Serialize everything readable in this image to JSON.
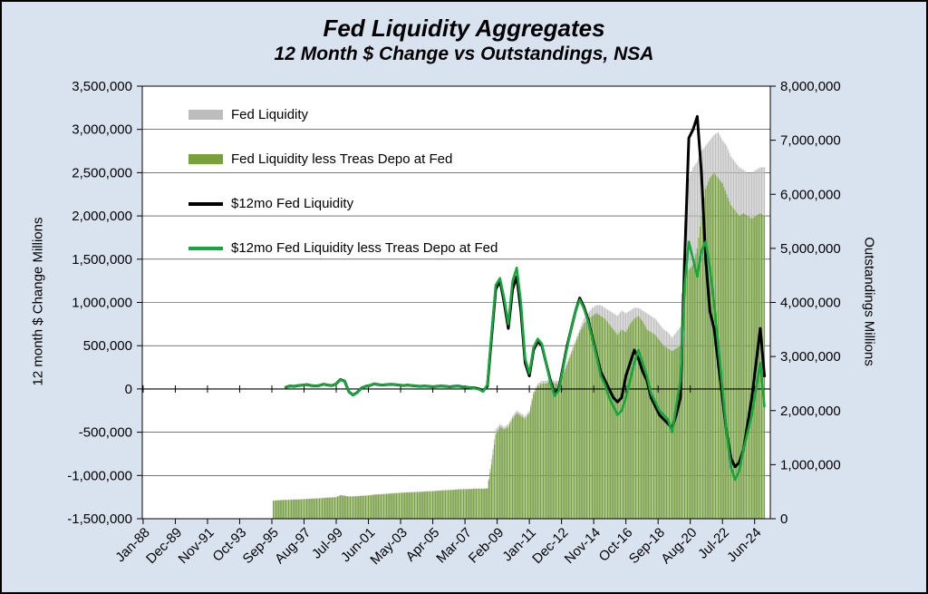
{
  "chart_data": {
    "type": "bar+line combo (bars on right axis, lines on left axis)",
    "title": "Fed Liquidity Aggregates",
    "subtitle": "12 Month $ Change vs Outstandings, NSA",
    "ylabel_left": "12 month $ Change Millions",
    "ylabel_right": "Outstandings Millions",
    "left_axis": {
      "min": -1500000,
      "max": 3500000,
      "step": 500000
    },
    "right_axis": {
      "min": 0,
      "max": 8000000,
      "step": 1000000
    },
    "x_axis": {
      "tick_labels": [
        "Jan-88",
        "Dec-89",
        "Nov-91",
        "Oct-93",
        "Sep-95",
        "Aug-97",
        "Jul-99",
        "Jun-01",
        "May-03",
        "Apr-05",
        "Mar-07",
        "Feb-09",
        "Jan-11",
        "Dec-12",
        "Nov-14",
        "Oct-16",
        "Sep-18",
        "Aug-20",
        "Jul-22",
        "Jun-24"
      ],
      "tick_start_year": 1988.0,
      "tick_step_months": 23
    },
    "colors": {
      "background": "#d9e3f0",
      "plot_background": "#ffffff",
      "grid": "#000000"
    },
    "series": [
      {
        "name": "Fed Liquidity",
        "type": "bar",
        "axis": "right",
        "color": "#bdbdbd",
        "x_start": 1995.75,
        "x_step": 0.25,
        "values": [
          340000,
          345000,
          350000,
          352000,
          355000,
          360000,
          362000,
          365000,
          370000,
          375000,
          378000,
          382000,
          390000,
          395000,
          398000,
          405000,
          440000,
          430000,
          415000,
          418000,
          422000,
          428000,
          432000,
          438000,
          450000,
          455000,
          460000,
          465000,
          472000,
          478000,
          482000,
          488000,
          492000,
          495000,
          498000,
          502000,
          508000,
          512000,
          515000,
          520000,
          528000,
          532000,
          535000,
          540000,
          548000,
          550000,
          552000,
          555000,
          560000,
          562000,
          560000,
          565000,
          1100000,
          1650000,
          1750000,
          1700000,
          1750000,
          1900000,
          2000000,
          1950000,
          1900000,
          2000000,
          2350000,
          2500000,
          2550000,
          2550000,
          2600000,
          2550000,
          2550000,
          2700000,
          2900000,
          3100000,
          3300000,
          3500000,
          3700000,
          3800000,
          3900000,
          3950000,
          3950000,
          3900000,
          3850000,
          3800000,
          3750000,
          3850000,
          3800000,
          3850000,
          3900000,
          3900000,
          3850000,
          3800000,
          3750000,
          3700000,
          3600000,
          3500000,
          3450000,
          3350000,
          3450000,
          3550000,
          5400000,
          6300000,
          6500000,
          6600000,
          6800000,
          6900000,
          7000000,
          7100000,
          7150000,
          7000000,
          6900000,
          6700000,
          6600000,
          6500000,
          6450000,
          6400000,
          6400000,
          6450000,
          6500000,
          6500000
        ]
      },
      {
        "name": "Fed Liquidity less Treas Depo at Fed",
        "type": "bar",
        "axis": "right",
        "color": "#76a13e",
        "x_start": 1995.75,
        "x_step": 0.25,
        "values": [
          332000,
          337000,
          342000,
          344000,
          347000,
          352000,
          354000,
          357000,
          362000,
          367000,
          370000,
          374000,
          382000,
          387000,
          390000,
          397000,
          432000,
          422000,
          407000,
          410000,
          414000,
          420000,
          424000,
          430000,
          442000,
          447000,
          452000,
          457000,
          464000,
          470000,
          474000,
          480000,
          484000,
          487000,
          490000,
          494000,
          500000,
          504000,
          507000,
          512000,
          520000,
          524000,
          527000,
          532000,
          540000,
          542000,
          544000,
          547000,
          552000,
          554000,
          552000,
          557000,
          1000000,
          1550000,
          1700000,
          1650000,
          1700000,
          1850000,
          1950000,
          1900000,
          1850000,
          1950000,
          2300000,
          2450000,
          2500000,
          2500000,
          2550000,
          2500000,
          2500000,
          2650000,
          2850000,
          3050000,
          3250000,
          3450000,
          3600000,
          3700000,
          3750000,
          3800000,
          3750000,
          3700000,
          3600000,
          3500000,
          3400000,
          3500000,
          3450000,
          3600000,
          3700000,
          3750000,
          3650000,
          3500000,
          3450000,
          3400000,
          3300000,
          3200000,
          3150000,
          3100000,
          3150000,
          3200000,
          4800000,
          4600000,
          4700000,
          5000000,
          5600000,
          6100000,
          6300000,
          6400000,
          6300000,
          6200000,
          6000000,
          5800000,
          5700000,
          5600000,
          5650000,
          5600000,
          5550000,
          5600000,
          5650000,
          5600000
        ]
      },
      {
        "name": "$12mo Fed Liquidity",
        "type": "line",
        "axis": "left",
        "color": "#000000",
        "x_start": 1996.5,
        "x_step": 0.25,
        "values": [
          20000,
          35000,
          30000,
          40000,
          45000,
          50000,
          40000,
          35000,
          40000,
          55000,
          45000,
          40000,
          60000,
          110000,
          90000,
          -30000,
          -70000,
          -40000,
          10000,
          30000,
          40000,
          60000,
          50000,
          45000,
          50000,
          55000,
          50000,
          45000,
          40000,
          45000,
          40000,
          35000,
          30000,
          35000,
          30000,
          25000,
          30000,
          35000,
          30000,
          25000,
          30000,
          35000,
          25000,
          20000,
          15000,
          10000,
          0,
          -20000,
          30000,
          600000,
          1150000,
          1250000,
          1000000,
          700000,
          1150000,
          1300000,
          900000,
          300000,
          150000,
          450000,
          550000,
          500000,
          300000,
          100000,
          -50000,
          0,
          250000,
          500000,
          700000,
          900000,
          1050000,
          950000,
          800000,
          600000,
          400000,
          200000,
          100000,
          0,
          -100000,
          -150000,
          -100000,
          150000,
          300000,
          450000,
          350000,
          200000,
          100000,
          -100000,
          -200000,
          -300000,
          -350000,
          -400000,
          -450000,
          -300000,
          -100000,
          1500000,
          2900000,
          3000000,
          3150000,
          2500000,
          1500000,
          900000,
          700000,
          300000,
          -100000,
          -500000,
          -800000,
          -900000,
          -850000,
          -700000,
          -400000,
          -100000,
          300000,
          700000,
          150000
        ]
      },
      {
        "name": "$12mo Fed Liquidity less Treas Depo at Fed",
        "type": "line",
        "axis": "left",
        "color": "#14a83c",
        "x_start": 1996.5,
        "x_step": 0.25,
        "values": [
          20000,
          35000,
          30000,
          40000,
          45000,
          50000,
          40000,
          35000,
          40000,
          55000,
          45000,
          40000,
          60000,
          110000,
          90000,
          -30000,
          -70000,
          -40000,
          10000,
          30000,
          40000,
          60000,
          50000,
          45000,
          50000,
          55000,
          50000,
          45000,
          40000,
          45000,
          40000,
          35000,
          30000,
          35000,
          30000,
          25000,
          30000,
          35000,
          30000,
          25000,
          30000,
          35000,
          25000,
          20000,
          15000,
          5000,
          -5000,
          -30000,
          50000,
          650000,
          1200000,
          1280000,
          1050000,
          750000,
          1250000,
          1400000,
          1000000,
          350000,
          180000,
          480000,
          580000,
          520000,
          300000,
          80000,
          -80000,
          -20000,
          230000,
          480000,
          700000,
          900000,
          1030000,
          930000,
          780000,
          580000,
          380000,
          150000,
          50000,
          -100000,
          -200000,
          -300000,
          -250000,
          -100000,
          100000,
          300000,
          450000,
          300000,
          150000,
          -50000,
          -150000,
          -250000,
          -300000,
          -350000,
          -500000,
          -200000,
          100000,
          1200000,
          1700000,
          1500000,
          1300000,
          1600000,
          1700000,
          1400000,
          1000000,
          500000,
          0,
          -500000,
          -900000,
          -1050000,
          -950000,
          -700000,
          -500000,
          -300000,
          0,
          300000,
          -200000
        ]
      }
    ]
  }
}
